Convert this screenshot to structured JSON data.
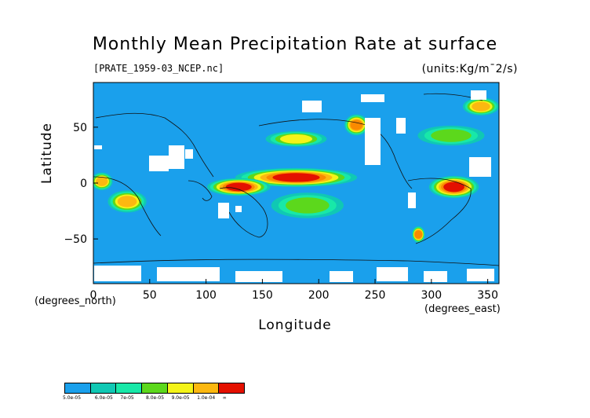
{
  "chart_data": {
    "type": "heatmap",
    "title": "Monthly Mean Precipitation Rate at surface",
    "subtitle": "[PRATE_1959-03_NCEP.nc]",
    "units": "(units:Kg/m¯2/s)",
    "xlabel": "Longitude",
    "ylabel": "Latitude",
    "x_units": "(degrees_east)",
    "y_units": "(degrees_north)",
    "xlim": [
      0,
      360
    ],
    "ylim": [
      -90,
      90
    ],
    "x_ticks": [
      0,
      50,
      100,
      150,
      200,
      250,
      300,
      350
    ],
    "y_ticks": [
      -50,
      0,
      50
    ],
    "colorbar": {
      "levels": [
        "5.0e-05",
        "6.0e-05",
        "7e-05",
        "8.0e-05",
        "9.0e-05",
        "1.0e-04",
        "∞"
      ],
      "colors": [
        "#1aa0ec",
        "#10c8b4",
        "#18e8a8",
        "#5cd81c",
        "#f4f418",
        "#fcb810",
        "#fa8a00",
        "#e41000"
      ]
    },
    "background_color": "#1aa0ec",
    "regions": [
      {
        "lon": [
          128,
          232
        ],
        "lat": [
          -2,
          12
        ],
        "level": 7
      },
      {
        "lon": [
          103,
          155
        ],
        "lat": [
          -10,
          3
        ],
        "level": 7
      },
      {
        "lon": [
          300,
          340
        ],
        "lat": [
          -12,
          5
        ],
        "level": 7
      },
      {
        "lon": [
          155,
          205
        ],
        "lat": [
          34,
          45
        ],
        "level": 4
      },
      {
        "lon": [
          290,
          345
        ],
        "lat": [
          35,
          50
        ],
        "level": 3
      },
      {
        "lon": [
          15,
          45
        ],
        "lat": [
          -25,
          -8
        ],
        "level": 5
      },
      {
        "lon": [
          225,
          242
        ],
        "lat": [
          44,
          60
        ],
        "level": 6
      },
      {
        "lon": [
          330,
          358
        ],
        "lat": [
          62,
          75
        ],
        "level": 5
      },
      {
        "lon": [
          285,
          292
        ],
        "lat": [
          -52,
          -40
        ],
        "level": 6
      },
      {
        "lon": [
          160,
          220
        ],
        "lat": [
          -30,
          -10
        ],
        "level": 3
      },
      {
        "lon": [
          0,
          15
        ],
        "lat": [
          -5,
          8
        ],
        "level": 5
      }
    ]
  }
}
